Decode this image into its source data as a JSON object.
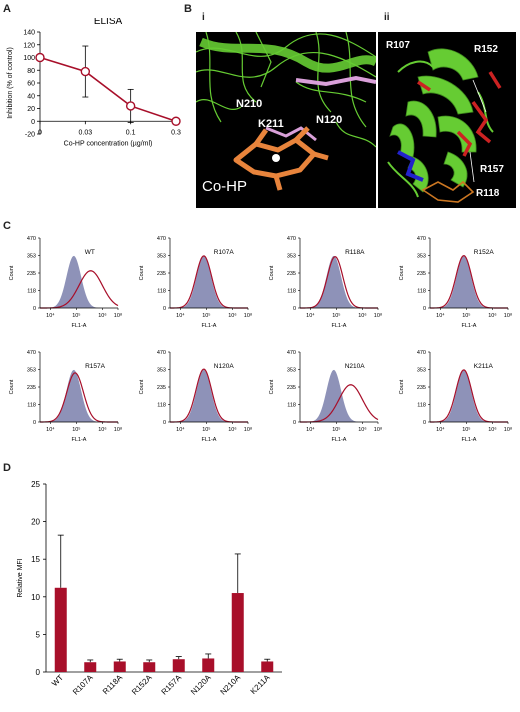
{
  "panels": {
    "A": "A",
    "B": "B",
    "C": "C",
    "D": "D"
  },
  "panelB": {
    "i": {
      "roman": "i",
      "labels": {
        "n210": "N210",
        "k211": "K211",
        "n120": "N120",
        "cohp": "Co-HP"
      },
      "colors": {
        "background": "#000000",
        "ribbon": "#66cc33",
        "ligand": "#e8843c",
        "residue": "#d9a0d9"
      }
    },
    "ii": {
      "roman": "ii",
      "labels": {
        "r107": "R107",
        "r152": "R152",
        "r157": "R157",
        "r118": "R118"
      },
      "colors": {
        "background": "#000000",
        "ribbon": "#66cc33",
        "arginine": "#cc2222",
        "blue": "#2222cc",
        "ligand": "#cc7722"
      }
    }
  },
  "colors": {
    "accent": "#a80f2a",
    "histogram_fill": "#8e92b8"
  },
  "chart_data": [
    {
      "id": "A",
      "type": "line",
      "title": "ELISA",
      "xlabel": "Co-HP concentration (µg/ml)",
      "ylabel": "Inhibition (% of control)",
      "categories": [
        "0",
        "0.03",
        "0.1",
        "0.3"
      ],
      "values": [
        100,
        78,
        24,
        0
      ],
      "errors": [
        0,
        40,
        26,
        0
      ],
      "ylim": [
        -20,
        140
      ],
      "yticks": [
        "-20",
        "0",
        "20",
        "40",
        "60",
        "80",
        "100",
        "120",
        "140"
      ]
    },
    {
      "id": "C",
      "type": "area",
      "xlabel": "FL1-A",
      "ylabel": "Count",
      "yticks": [
        "0",
        "118",
        "235",
        "353",
        "470"
      ],
      "xticks": [
        "10⁴",
        "10⁵",
        "10⁶",
        "10⁸"
      ],
      "xlim_log10": [
        3.6,
        6.6
      ],
      "reference": {
        "name": "",
        "peak_log10": 4.9,
        "width": 0.28,
        "height": 350
      },
      "samples": [
        {
          "name": "WT",
          "peak_log10": 5.55,
          "width": 0.45,
          "height": 250
        },
        {
          "name": "R107A",
          "peak_log10": 4.9,
          "width": 0.3,
          "height": 350
        },
        {
          "name": "R118A",
          "peak_log10": 4.95,
          "width": 0.3,
          "height": 345
        },
        {
          "name": "R152A",
          "peak_log10": 4.9,
          "width": 0.3,
          "height": 352
        },
        {
          "name": "R157A",
          "peak_log10": 4.95,
          "width": 0.32,
          "height": 330
        },
        {
          "name": "N120A",
          "peak_log10": 4.9,
          "width": 0.3,
          "height": 355
        },
        {
          "name": "N210A",
          "peak_log10": 5.55,
          "width": 0.45,
          "height": 250
        },
        {
          "name": "K211A",
          "peak_log10": 4.9,
          "width": 0.3,
          "height": 350
        }
      ]
    },
    {
      "id": "D",
      "type": "bar",
      "ylabel": "Relative MFI",
      "categories": [
        "WT",
        "R107A",
        "R118A",
        "R152A",
        "R157A",
        "N120A",
        "N210A",
        "K211A"
      ],
      "values": [
        11.2,
        1.3,
        1.4,
        1.3,
        1.7,
        1.8,
        10.5,
        1.4
      ],
      "errors": [
        7.0,
        0.3,
        0.3,
        0.3,
        0.35,
        0.6,
        5.2,
        0.3
      ],
      "ylim": [
        0,
        25
      ],
      "yticks": [
        "0",
        "5",
        "10",
        "15",
        "20",
        "25"
      ]
    }
  ]
}
